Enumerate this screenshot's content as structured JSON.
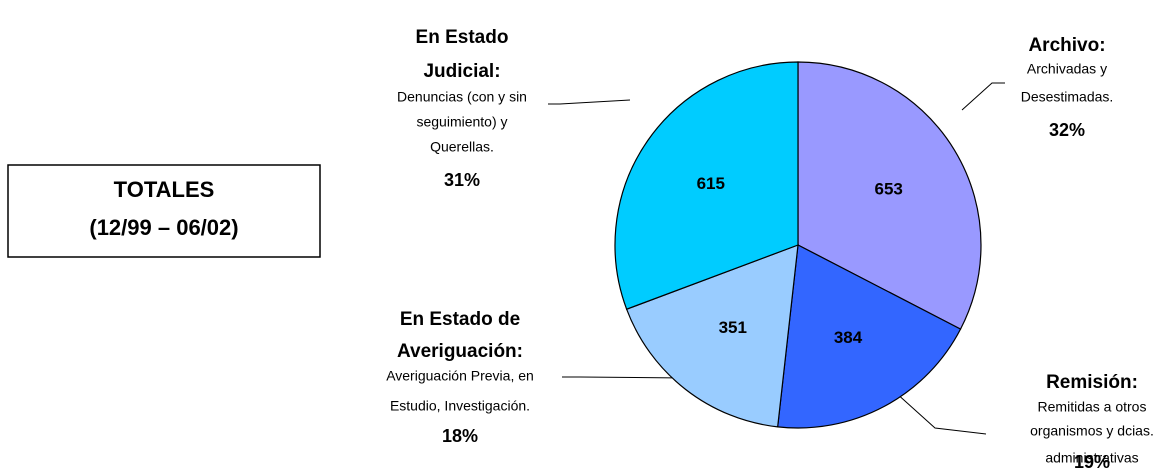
{
  "chart_data": {
    "type": "pie",
    "title": [
      "TOTALES",
      "(12/99 – 06/02)"
    ],
    "categories": [
      [
        "Archivo:"
      ],
      [
        "Remisión:"
      ],
      [
        "En Estado de",
        "Averiguación:"
      ],
      [
        "En Estado",
        "Judicial:"
      ]
    ],
    "descriptions": [
      [
        "Archivadas y",
        "Desestimadas."
      ],
      [
        "Remitidas a otros",
        "organismos y dcias.",
        "administrativas"
      ],
      [
        "Averiguación Previa, en",
        "Estudio, Investigación."
      ],
      [
        "Denuncias  (con y sin",
        "seguimiento) y",
        "Querellas."
      ]
    ],
    "values": [
      653,
      384,
      351,
      615
    ],
    "percent_labels": [
      "32%",
      "19%",
      "18%",
      "31%"
    ],
    "colors": [
      "#9999ff",
      "#3366ff",
      "#99ccff",
      "#00ccff"
    ]
  }
}
